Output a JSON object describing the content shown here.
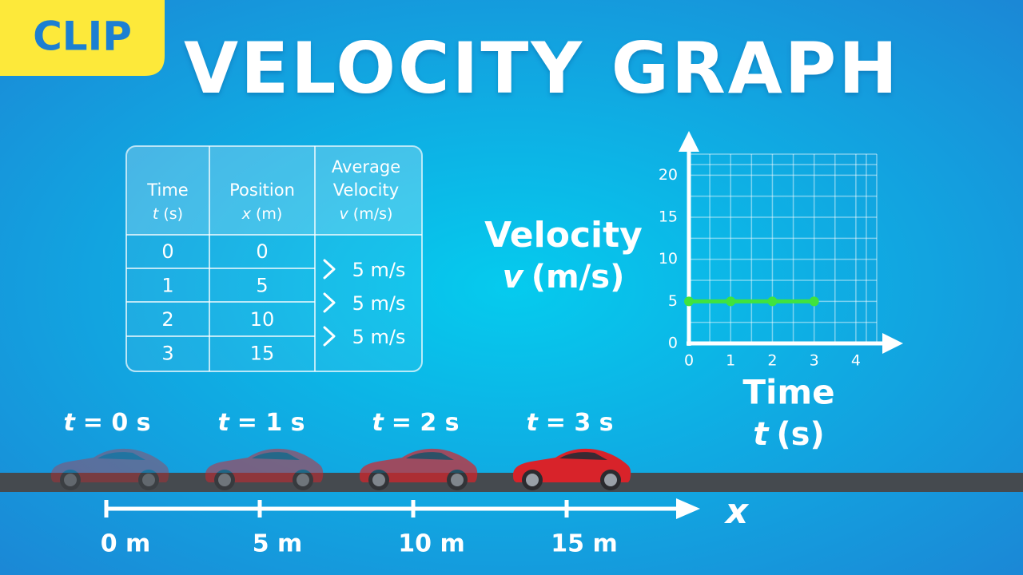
{
  "badge": "CLIP",
  "title": "VELOCITY GRAPH",
  "table": {
    "headers": [
      {
        "lines": [
          "Time"
        ],
        "symbol": "t",
        "unit": "(s)"
      },
      {
        "lines": [
          "Position"
        ],
        "symbol": "x",
        "unit": "(m)"
      },
      {
        "lines": [
          "Average",
          "Velocity"
        ],
        "symbol": "v",
        "unit": "(m/s)"
      }
    ],
    "rows": [
      [
        0,
        0
      ],
      [
        1,
        5
      ],
      [
        2,
        10
      ],
      [
        3,
        15
      ]
    ],
    "velocities": [
      "5 m/s",
      "5 m/s",
      "5 m/s"
    ]
  },
  "chart_data": {
    "type": "line",
    "ylabel": "Velocity",
    "ylabel_symbol": "v",
    "ylabel_unit": "(m/s)",
    "xlabel": "Time",
    "xlabel_symbol": "t",
    "xlabel_unit": "(s)",
    "x": [
      0,
      1,
      2,
      3
    ],
    "series": [
      {
        "color": "#3fe33f",
        "values": [
          5,
          5,
          5,
          5
        ]
      }
    ],
    "xlim": [
      0,
      4.5
    ],
    "ylim": [
      0,
      22.5
    ],
    "xticks": [
      0,
      1,
      2,
      3,
      4
    ],
    "yticks": [
      0,
      5,
      10,
      15,
      20
    ],
    "grid": true
  },
  "scene": {
    "times": [
      {
        "symbol": "t",
        "text": "= 0 s"
      },
      {
        "symbol": "t",
        "text": "= 1 s"
      },
      {
        "symbol": "t",
        "text": "= 2 s"
      },
      {
        "symbol": "t",
        "text": "= 3 s"
      }
    ],
    "positions": [
      "0 m",
      "5 m",
      "10 m",
      "15 m"
    ],
    "axis_label": "x"
  }
}
